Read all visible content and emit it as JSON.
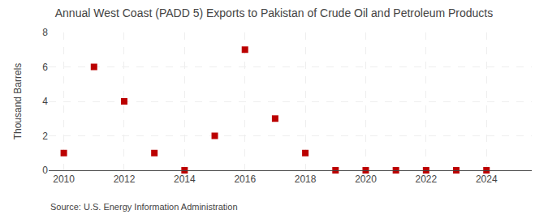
{
  "chart_data": {
    "type": "scatter",
    "title": "Annual West Coast (PADD 5) Exports to Pakistan of Crude Oil and Petroleum Products",
    "ylabel": "Thousand Barrels",
    "annotations": [
      "Source: U.S. Energy Information Administration"
    ],
    "x": [
      2010,
      2011,
      2012,
      2013,
      2014,
      2015,
      2016,
      2017,
      2018,
      2019,
      2020,
      2021,
      2022,
      2023,
      2024
    ],
    "values": [
      1,
      6,
      4,
      1,
      0,
      2,
      7,
      3,
      1,
      0,
      0,
      0,
      0,
      0,
      0
    ],
    "xlim": [
      2009.5,
      2025.5
    ],
    "ylim": [
      0,
      8
    ],
    "xticks": [
      2010,
      2012,
      2014,
      2016,
      2018,
      2020,
      2022,
      2024
    ],
    "yticks": [
      0,
      2,
      4,
      6,
      8
    ],
    "color": "#bb0000",
    "marker": "square",
    "grid": true
  }
}
